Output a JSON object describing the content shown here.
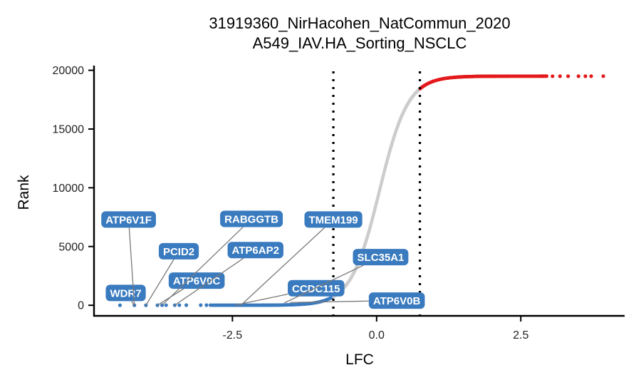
{
  "chart_data": {
    "type": "scatter",
    "title": "31919360_NirHacohen_NatCommun_2020",
    "subtitle": "A549_IAV.HA_Sorting_NSCLC",
    "xlabel": "LFC",
    "ylabel": "Rank",
    "xlim": [
      -4.9,
      4.3
    ],
    "ylim": [
      -900,
      20400
    ],
    "x_ticks": [
      -2.5,
      0.0,
      2.5
    ],
    "x_tick_labels": [
      "-2.5",
      "0.0",
      "2.5"
    ],
    "y_ticks": [
      0,
      5000,
      10000,
      15000,
      20000
    ],
    "y_tick_labels": [
      "0",
      "5000",
      "10000",
      "15000",
      "20000"
    ],
    "grid": false,
    "thresholds": [
      -0.75,
      0.75
    ],
    "total_genes": 19500,
    "colors": {
      "negative": "#3a7bbf",
      "neutral": "#cccccc",
      "positive": "#e31a1c",
      "label_bg": "#3a7bbf",
      "threshold_line": "#000000",
      "connector": "#7a7a7a"
    },
    "extreme_negative_points": [
      {
        "lfc": -4.45,
        "rank": 1
      },
      {
        "lfc": -4.2,
        "rank": 2
      },
      {
        "lfc": -4.0,
        "rank": 3
      },
      {
        "lfc": -3.8,
        "rank": 4
      },
      {
        "lfc": -3.72,
        "rank": 5
      },
      {
        "lfc": -3.65,
        "rank": 6
      },
      {
        "lfc": -3.5,
        "rank": 7
      },
      {
        "lfc": -3.42,
        "rank": 8
      },
      {
        "lfc": -3.3,
        "rank": 9
      },
      {
        "lfc": -3.05,
        "rank": 10
      },
      {
        "lfc": -2.95,
        "rank": 11
      },
      {
        "lfc": -2.88,
        "rank": 12
      }
    ],
    "extreme_positive_points": [
      {
        "lfc": 3.05,
        "rank": 19494
      },
      {
        "lfc": 3.18,
        "rank": 19495
      },
      {
        "lfc": 3.32,
        "rank": 19496
      },
      {
        "lfc": 3.5,
        "rank": 19497
      },
      {
        "lfc": 3.62,
        "rank": 19498
      },
      {
        "lfc": 3.72,
        "rank": 19499
      },
      {
        "lfc": 3.93,
        "rank": 19500
      }
    ],
    "labeled_genes": [
      {
        "gene": "WDR7",
        "lfc": -4.2,
        "rank": 2,
        "label_lfc": -4.35,
        "label_rank": 1050
      },
      {
        "gene": "ATP6V1F",
        "lfc": -4.2,
        "rank": 2,
        "label_lfc": -4.3,
        "label_rank": 7300
      },
      {
        "gene": "PCID2",
        "lfc": -4.0,
        "rank": 3,
        "label_lfc": -3.43,
        "label_rank": 4600
      },
      {
        "gene": "ATP6V0C",
        "lfc": -3.8,
        "rank": 4,
        "label_lfc": -3.12,
        "label_rank": 2100
      },
      {
        "gene": "RABGGTB",
        "lfc": -3.72,
        "rank": 5,
        "label_lfc": -2.17,
        "label_rank": 7350
      },
      {
        "gene": "ATP6AP2",
        "lfc": -3.5,
        "rank": 7,
        "label_lfc": -2.1,
        "label_rank": 4700
      },
      {
        "gene": "TMEM199",
        "lfc": -2.35,
        "rank": 20,
        "label_lfc": -0.75,
        "label_rank": 7300
      },
      {
        "gene": "CCDC115",
        "lfc": -2.45,
        "rank": 15,
        "label_lfc": -1.05,
        "label_rank": 1450
      },
      {
        "gene": "SLC35A1",
        "lfc": -1.6,
        "rank": 200,
        "label_lfc": 0.07,
        "label_rank": 4100
      },
      {
        "gene": "ATP6V0B",
        "lfc": -1.5,
        "rank": 240,
        "label_lfc": 0.35,
        "label_rank": 400
      }
    ]
  }
}
